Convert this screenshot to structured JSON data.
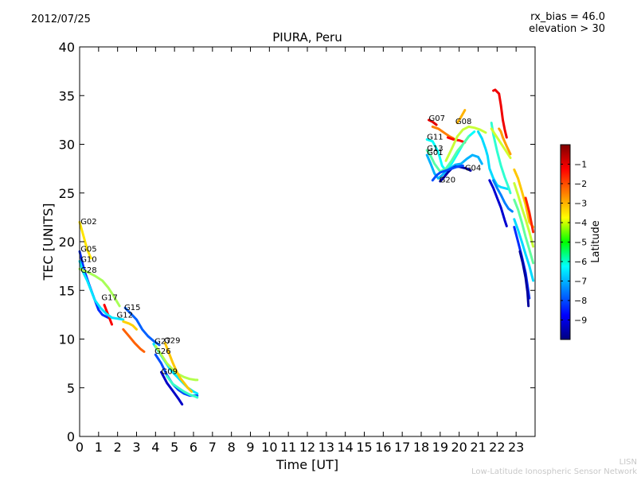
{
  "header": {
    "date": "2012/07/25",
    "bias_line1": "rx_bias = 46.0",
    "bias_line2": "elevation > 30"
  },
  "credit": {
    "line1": "LISN",
    "line2": "Low-Latitude Ionospheric Sensor Network"
  },
  "chart_data": {
    "type": "scatter",
    "title": "PIURA, Peru",
    "xlabel": "Time [UT]",
    "ylabel": "TEC [UNITS]",
    "xlim": [
      0,
      24
    ],
    "ylim": [
      0,
      40
    ],
    "xticks": [
      0,
      1,
      2,
      3,
      4,
      5,
      6,
      7,
      8,
      9,
      10,
      11,
      12,
      13,
      14,
      15,
      16,
      17,
      18,
      19,
      20,
      21,
      22,
      23
    ],
    "yticks": [
      0,
      5,
      10,
      15,
      20,
      25,
      30,
      35,
      40
    ],
    "grid": false,
    "colorbar": {
      "label": "Latitude",
      "range": [
        -10,
        0
      ],
      "ticks": [
        -1,
        -2,
        -3,
        -4,
        -5,
        -6,
        -7,
        -8,
        -9
      ]
    },
    "annotations": [
      {
        "text": "G02",
        "x": 0.05,
        "y": 21.8
      },
      {
        "text": "G05",
        "x": 0.05,
        "y": 19.0
      },
      {
        "text": "G10",
        "x": 0.05,
        "y": 17.9
      },
      {
        "text": "G28",
        "x": 0.05,
        "y": 16.8
      },
      {
        "text": "G17",
        "x": 1.15,
        "y": 14.0
      },
      {
        "text": "G15",
        "x": 2.35,
        "y": 13.0
      },
      {
        "text": "G12",
        "x": 1.95,
        "y": 12.2
      },
      {
        "text": "G27",
        "x": 3.95,
        "y": 9.5
      },
      {
        "text": "G29",
        "x": 4.45,
        "y": 9.6
      },
      {
        "text": "G26",
        "x": 3.95,
        "y": 8.5
      },
      {
        "text": "G09",
        "x": 4.3,
        "y": 6.4
      },
      {
        "text": "G07",
        "x": 18.4,
        "y": 32.4
      },
      {
        "text": "G08",
        "x": 19.8,
        "y": 32.1
      },
      {
        "text": "G11",
        "x": 18.3,
        "y": 30.5
      },
      {
        "text": "G13",
        "x": 18.3,
        "y": 29.3
      },
      {
        "text": "G01",
        "x": 18.3,
        "y": 28.9
      },
      {
        "text": "G04",
        "x": 20.3,
        "y": 27.3
      },
      {
        "text": "G20",
        "x": 18.95,
        "y": 26.1
      }
    ],
    "series": [
      {
        "lat": -3.5,
        "points": [
          [
            0.0,
            22.0
          ],
          [
            0.2,
            20.6
          ],
          [
            0.4,
            19.2
          ],
          [
            0.6,
            18.3
          ]
        ]
      },
      {
        "lat": -8.3,
        "points": [
          [
            0.0,
            19.0
          ],
          [
            0.25,
            17.0
          ],
          [
            0.5,
            15.6
          ],
          [
            0.8,
            14.0
          ],
          [
            1.0,
            13.0
          ],
          [
            1.2,
            12.5
          ],
          [
            1.5,
            12.2
          ]
        ]
      },
      {
        "lat": -1.2,
        "points": [
          [
            1.3,
            13.5
          ],
          [
            1.5,
            12.5
          ],
          [
            1.7,
            11.5
          ]
        ]
      },
      {
        "lat": -6.5,
        "points": [
          [
            0.0,
            18.0
          ],
          [
            0.2,
            16.8
          ],
          [
            0.4,
            16.0
          ],
          [
            0.6,
            15.0
          ],
          [
            0.8,
            14.0
          ],
          [
            1.1,
            13.2
          ],
          [
            1.4,
            12.6
          ],
          [
            1.7,
            12.2
          ],
          [
            2.0,
            12.1
          ],
          [
            2.3,
            12.0
          ]
        ]
      },
      {
        "lat": -4.6,
        "points": [
          [
            0.0,
            17.2
          ],
          [
            0.4,
            16.9
          ],
          [
            0.8,
            16.5
          ],
          [
            1.2,
            16.0
          ],
          [
            1.5,
            15.3
          ],
          [
            1.8,
            14.4
          ],
          [
            2.1,
            13.4
          ]
        ]
      },
      {
        "lat": -3.3,
        "points": [
          [
            2.3,
            11.8
          ],
          [
            2.6,
            11.6
          ],
          [
            2.8,
            11.4
          ],
          [
            3.0,
            11.0
          ]
        ]
      },
      {
        "lat": -2.2,
        "points": [
          [
            2.3,
            11.0
          ],
          [
            2.6,
            10.3
          ],
          [
            2.9,
            9.6
          ],
          [
            3.2,
            9.0
          ],
          [
            3.4,
            8.7
          ]
        ]
      },
      {
        "lat": -7.8,
        "points": [
          [
            2.4,
            13.2
          ],
          [
            2.7,
            12.6
          ],
          [
            3.0,
            12.0
          ],
          [
            3.3,
            11.0
          ],
          [
            3.6,
            10.3
          ],
          [
            3.9,
            9.8
          ],
          [
            4.2,
            9.4
          ]
        ]
      },
      {
        "lat": -6.5,
        "points": [
          [
            3.9,
            9.5
          ],
          [
            4.2,
            8.6
          ],
          [
            4.5,
            7.7
          ],
          [
            4.8,
            6.8
          ],
          [
            5.1,
            6.2
          ],
          [
            5.4,
            5.6
          ],
          [
            5.7,
            5.0
          ],
          [
            6.0,
            4.6
          ],
          [
            6.2,
            4.4
          ]
        ]
      },
      {
        "lat": -4.5,
        "points": [
          [
            4.0,
            9.3
          ],
          [
            4.3,
            8.4
          ],
          [
            4.6,
            7.5
          ],
          [
            4.9,
            6.9
          ],
          [
            5.2,
            6.4
          ],
          [
            5.5,
            6.1
          ],
          [
            5.8,
            5.9
          ],
          [
            6.1,
            5.8
          ],
          [
            6.2,
            5.8
          ]
        ]
      },
      {
        "lat": -3.2,
        "points": [
          [
            4.5,
            9.6
          ],
          [
            4.7,
            8.6
          ],
          [
            4.9,
            7.6
          ],
          [
            5.1,
            6.7
          ],
          [
            5.3,
            6.0
          ],
          [
            5.5,
            5.5
          ],
          [
            5.7,
            5.0
          ],
          [
            5.9,
            4.6
          ]
        ]
      },
      {
        "lat": -8.0,
        "points": [
          [
            4.0,
            8.4
          ],
          [
            4.3,
            7.5
          ],
          [
            4.6,
            6.3
          ],
          [
            4.9,
            5.4
          ],
          [
            5.2,
            4.8
          ],
          [
            5.5,
            4.4
          ],
          [
            5.8,
            4.2
          ],
          [
            6.1,
            4.2
          ],
          [
            6.2,
            4.2
          ]
        ]
      },
      {
        "lat": -9.3,
        "points": [
          [
            4.3,
            6.6
          ],
          [
            4.6,
            5.5
          ],
          [
            4.9,
            4.7
          ],
          [
            5.2,
            3.9
          ],
          [
            5.4,
            3.3
          ]
        ]
      },
      {
        "lat": -5.7,
        "points": [
          [
            4.6,
            6.2
          ],
          [
            4.9,
            5.4
          ],
          [
            5.2,
            5.0
          ],
          [
            5.5,
            4.6
          ],
          [
            5.8,
            4.3
          ],
          [
            6.1,
            4.1
          ],
          [
            6.2,
            4.0
          ]
        ]
      },
      {
        "lat": -1.0,
        "points": [
          [
            18.4,
            32.5
          ],
          [
            18.6,
            32.3
          ],
          [
            18.8,
            32.0
          ]
        ]
      },
      {
        "lat": -2.5,
        "points": [
          [
            18.6,
            31.8
          ],
          [
            18.9,
            31.6
          ],
          [
            19.2,
            31.2
          ],
          [
            19.5,
            30.8
          ],
          [
            19.7,
            30.6
          ]
        ]
      },
      {
        "lat": -1.3,
        "points": [
          [
            19.4,
            30.7
          ],
          [
            19.7,
            30.5
          ],
          [
            20.0,
            30.4
          ],
          [
            20.3,
            30.2
          ]
        ]
      },
      {
        "lat": -3.0,
        "points": [
          [
            19.9,
            32.2
          ],
          [
            20.1,
            32.8
          ],
          [
            20.3,
            33.5
          ]
        ]
      },
      {
        "lat": -4.3,
        "points": [
          [
            19.3,
            28.3
          ],
          [
            19.6,
            29.5
          ],
          [
            19.9,
            30.8
          ],
          [
            20.2,
            31.5
          ],
          [
            20.5,
            31.8
          ],
          [
            20.8,
            31.7
          ],
          [
            21.1,
            31.5
          ],
          [
            21.4,
            31.2
          ]
        ]
      },
      {
        "lat": -6.2,
        "points": [
          [
            18.3,
            30.5
          ],
          [
            18.6,
            30.3
          ],
          [
            18.9,
            29.2
          ],
          [
            19.1,
            27.8
          ],
          [
            19.3,
            27.3
          ],
          [
            19.6,
            28.0
          ],
          [
            19.9,
            29.0
          ],
          [
            20.2,
            30.0
          ],
          [
            20.5,
            30.8
          ],
          [
            20.8,
            31.3
          ]
        ]
      },
      {
        "lat": -5.4,
        "points": [
          [
            18.3,
            29.4
          ],
          [
            18.5,
            28.8
          ],
          [
            18.7,
            28.0
          ],
          [
            19.0,
            27.2
          ],
          [
            19.3,
            27.5
          ],
          [
            19.6,
            28.3
          ],
          [
            19.9,
            29.3
          ],
          [
            20.2,
            30.0
          ],
          [
            20.5,
            30.8
          ]
        ]
      },
      {
        "lat": -7.0,
        "points": [
          [
            18.3,
            28.9
          ],
          [
            18.5,
            28.0
          ],
          [
            18.7,
            27.0
          ],
          [
            18.9,
            26.5
          ],
          [
            19.2,
            27.0
          ],
          [
            19.5,
            27.5
          ],
          [
            19.8,
            27.9
          ],
          [
            20.1,
            28.0
          ],
          [
            20.4,
            28.5
          ],
          [
            20.7,
            28.9
          ],
          [
            21.0,
            28.7
          ],
          [
            21.2,
            28.0
          ]
        ]
      },
      {
        "lat": -9.6,
        "points": [
          [
            19.0,
            26.2
          ],
          [
            19.2,
            26.6
          ],
          [
            19.4,
            27.1
          ],
          [
            19.6,
            27.5
          ],
          [
            19.8,
            27.7
          ],
          [
            20.0,
            27.7
          ],
          [
            20.2,
            27.6
          ],
          [
            20.4,
            27.5
          ],
          [
            20.6,
            27.3
          ]
        ]
      },
      {
        "lat": -8.0,
        "points": [
          [
            18.6,
            26.3
          ],
          [
            18.8,
            26.8
          ],
          [
            19.0,
            27.1
          ],
          [
            19.3,
            27.3
          ],
          [
            19.6,
            27.5
          ],
          [
            19.9,
            27.7
          ],
          [
            20.2,
            27.8
          ]
        ]
      },
      {
        "lat": -6.6,
        "points": [
          [
            21.0,
            31.3
          ],
          [
            21.2,
            30.6
          ],
          [
            21.4,
            29.5
          ],
          [
            21.5,
            28.8
          ],
          [
            21.6,
            27.5
          ],
          [
            21.8,
            26.5
          ],
          [
            22.0,
            25.8
          ],
          [
            22.2,
            25.6
          ],
          [
            22.6,
            25.4
          ]
        ]
      },
      {
        "lat": -5.8,
        "points": [
          [
            21.7,
            32.2
          ],
          [
            21.8,
            31.0
          ],
          [
            22.0,
            29.3
          ],
          [
            22.2,
            27.8
          ],
          [
            22.4,
            26.6
          ],
          [
            22.6,
            25.6
          ],
          [
            22.7,
            25.0
          ]
        ]
      },
      {
        "lat": -4.2,
        "points": [
          [
            21.7,
            31.6
          ],
          [
            21.9,
            31.0
          ],
          [
            22.1,
            30.4
          ],
          [
            22.3,
            29.8
          ],
          [
            22.5,
            29.2
          ],
          [
            22.7,
            28.6
          ]
        ]
      },
      {
        "lat": -7.5,
        "points": [
          [
            21.8,
            26.3
          ],
          [
            22.0,
            25.5
          ],
          [
            22.2,
            24.8
          ],
          [
            22.4,
            24.0
          ],
          [
            22.6,
            23.4
          ],
          [
            22.8,
            23.1
          ]
        ]
      },
      {
        "lat": -9.2,
        "points": [
          [
            21.6,
            26.3
          ],
          [
            21.8,
            25.5
          ],
          [
            22.0,
            24.5
          ],
          [
            22.2,
            23.5
          ],
          [
            22.4,
            22.2
          ],
          [
            22.5,
            21.6
          ]
        ]
      },
      {
        "lat": -1.1,
        "points": [
          [
            21.8,
            35.5
          ],
          [
            21.9,
            35.6
          ],
          [
            22.0,
            35.4
          ],
          [
            22.1,
            35.2
          ],
          [
            22.2,
            34.0
          ],
          [
            22.3,
            32.5
          ],
          [
            22.4,
            31.5
          ],
          [
            22.5,
            30.7
          ]
        ]
      },
      {
        "lat": -2.8,
        "points": [
          [
            22.1,
            31.6
          ],
          [
            22.2,
            31.3
          ],
          [
            22.3,
            30.7
          ],
          [
            22.5,
            29.8
          ],
          [
            22.7,
            29.0
          ]
        ]
      },
      {
        "lat": -3.2,
        "points": [
          [
            22.9,
            27.4
          ],
          [
            23.1,
            26.5
          ],
          [
            23.3,
            25.2
          ],
          [
            23.5,
            23.8
          ],
          [
            23.7,
            22.0
          ],
          [
            23.9,
            21.5
          ]
        ]
      },
      {
        "lat": -1.6,
        "points": [
          [
            23.5,
            24.5
          ],
          [
            23.7,
            23.0
          ],
          [
            23.8,
            22.0
          ],
          [
            23.9,
            21.0
          ]
        ]
      },
      {
        "lat": -4.3,
        "points": [
          [
            22.9,
            26.0
          ],
          [
            23.1,
            24.8
          ],
          [
            23.3,
            23.5
          ],
          [
            23.5,
            22.3
          ],
          [
            23.7,
            21.0
          ],
          [
            23.9,
            19.5
          ]
        ]
      },
      {
        "lat": -5.3,
        "points": [
          [
            22.9,
            24.3
          ],
          [
            23.1,
            23.3
          ],
          [
            23.3,
            22.0
          ],
          [
            23.5,
            20.5
          ],
          [
            23.7,
            19.2
          ],
          [
            23.9,
            17.8
          ]
        ]
      },
      {
        "lat": -6.6,
        "points": [
          [
            22.9,
            22.3
          ],
          [
            23.1,
            21.2
          ],
          [
            23.3,
            20.0
          ],
          [
            23.5,
            18.7
          ],
          [
            23.7,
            17.5
          ],
          [
            23.9,
            16.0
          ]
        ]
      },
      {
        "lat": -8.3,
        "points": [
          [
            22.9,
            21.5
          ],
          [
            23.1,
            20.0
          ],
          [
            23.3,
            18.5
          ],
          [
            23.5,
            16.8
          ],
          [
            23.6,
            15.5
          ],
          [
            23.7,
            14.2
          ]
        ]
      },
      {
        "lat": -9.7,
        "points": [
          [
            23.2,
            19.0
          ],
          [
            23.35,
            17.8
          ],
          [
            23.5,
            16.3
          ],
          [
            23.6,
            14.8
          ],
          [
            23.65,
            13.4
          ]
        ]
      }
    ]
  }
}
